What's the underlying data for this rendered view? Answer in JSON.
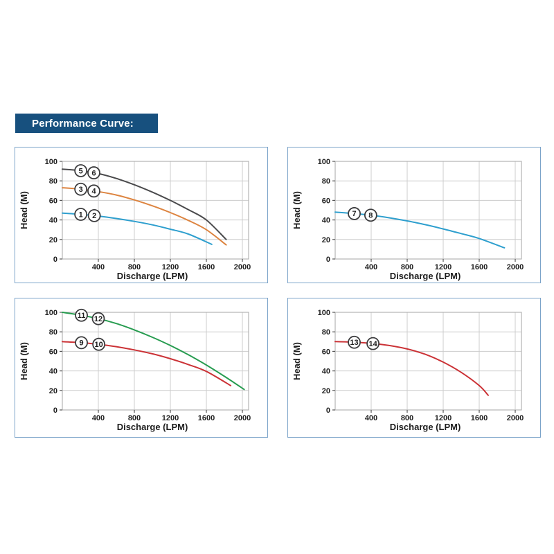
{
  "header": {
    "title": "Performance Curve:",
    "background": "#17507e",
    "text_color": "#ffffff"
  },
  "style": {
    "panel_border": "#7ba3c9",
    "grid_color": "#cccccc",
    "box_color": "#b3b3b3",
    "tick_color": "#555555",
    "label_color": "#1d1d1d",
    "marker_fill": "#ffffff",
    "marker_stroke": "#3c3c3e"
  },
  "chart_data": [
    {
      "id": "chart-top-left",
      "type": "line",
      "xlabel": "Discharge (LPM)",
      "ylabel": "Head (M)",
      "xlim": [
        0,
        2000
      ],
      "ylim": [
        0,
        100
      ],
      "xticks": [
        400,
        800,
        1200,
        1600,
        2000
      ],
      "yticks": [
        0,
        20,
        40,
        60,
        80,
        100
      ],
      "grid": true,
      "series": [
        {
          "name": "curve-5-6",
          "color": "#4a4a4c",
          "points": [
            [
              0,
              92
            ],
            [
              200,
              90.5
            ],
            [
              400,
              87.5
            ],
            [
              600,
              82.5
            ],
            [
              800,
              76
            ],
            [
              1000,
              68.5
            ],
            [
              1200,
              60
            ],
            [
              1400,
              50.5
            ],
            [
              1600,
              40
            ],
            [
              1820,
              20
            ]
          ],
          "markers": [
            {
              "label": "5",
              "x": 205
            },
            {
              "label": "6",
              "x": 350
            }
          ]
        },
        {
          "name": "curve-3-4",
          "color": "#dd8440",
          "points": [
            [
              0,
              73
            ],
            [
              200,
              71.5
            ],
            [
              400,
              69
            ],
            [
              600,
              65.5
            ],
            [
              800,
              60.5
            ],
            [
              1000,
              54.5
            ],
            [
              1200,
              47.5
            ],
            [
              1400,
              39.5
            ],
            [
              1600,
              30
            ],
            [
              1820,
              14.5
            ]
          ],
          "markers": [
            {
              "label": "3",
              "x": 205
            },
            {
              "label": "4",
              "x": 350
            }
          ]
        },
        {
          "name": "curve-1-2",
          "color": "#2e9fce",
          "points": [
            [
              0,
              47
            ],
            [
              200,
              45.8
            ],
            [
              400,
              44
            ],
            [
              600,
              41.5
            ],
            [
              800,
              38.5
            ],
            [
              1000,
              35
            ],
            [
              1200,
              30.5
            ],
            [
              1400,
              25.5
            ],
            [
              1660,
              15
            ]
          ],
          "markers": [
            {
              "label": "1",
              "x": 205
            },
            {
              "label": "2",
              "x": 355
            }
          ]
        }
      ]
    },
    {
      "id": "chart-top-right",
      "type": "line",
      "xlabel": "Discharge (LPM)",
      "ylabel": "Head (M)",
      "xlim": [
        0,
        2000
      ],
      "ylim": [
        0,
        100
      ],
      "xticks": [
        400,
        800,
        1200,
        1600,
        2000
      ],
      "yticks": [
        0,
        20,
        40,
        60,
        80,
        100
      ],
      "grid": true,
      "series": [
        {
          "name": "curve-7-8",
          "color": "#2e9fce",
          "points": [
            [
              0,
              48
            ],
            [
              200,
              46.6
            ],
            [
              400,
              44.8
            ],
            [
              600,
              42.2
            ],
            [
              800,
              39
            ],
            [
              1000,
              35.2
            ],
            [
              1200,
              30.8
            ],
            [
              1400,
              26
            ],
            [
              1600,
              21
            ],
            [
              1880,
              11.5
            ]
          ],
          "markers": [
            {
              "label": "7",
              "x": 212
            },
            {
              "label": "8",
              "x": 395
            }
          ]
        }
      ]
    },
    {
      "id": "chart-bottom-left",
      "type": "line",
      "xlabel": "Discharge (LPM)",
      "ylabel": "Head (M)",
      "xlim": [
        0,
        2000
      ],
      "ylim": [
        0,
        100
      ],
      "xticks": [
        400,
        800,
        1200,
        1600,
        2000
      ],
      "yticks": [
        0,
        20,
        40,
        60,
        80,
        100
      ],
      "grid": true,
      "series": [
        {
          "name": "curve-11-12",
          "color": "#279c50",
          "points": [
            [
              0,
              100
            ],
            [
              200,
              97.2
            ],
            [
              400,
              93.5
            ],
            [
              600,
              88.5
            ],
            [
              800,
              82
            ],
            [
              1000,
              74.5
            ],
            [
              1200,
              66
            ],
            [
              1400,
              56.5
            ],
            [
              1600,
              46
            ],
            [
              1800,
              34.5
            ],
            [
              2020,
              21
            ]
          ],
          "markers": [
            {
              "label": "11",
              "x": 212
            },
            {
              "label": "12",
              "x": 400
            }
          ]
        },
        {
          "name": "curve-9-10",
          "color": "#cb3236",
          "points": [
            [
              0,
              70
            ],
            [
              200,
              69
            ],
            [
              400,
              67.3
            ],
            [
              600,
              64.8
            ],
            [
              800,
              61.5
            ],
            [
              1000,
              57.5
            ],
            [
              1200,
              52.5
            ],
            [
              1400,
              46.5
            ],
            [
              1600,
              39.5
            ],
            [
              1870,
              25
            ]
          ],
          "markers": [
            {
              "label": "9",
              "x": 212
            },
            {
              "label": "10",
              "x": 405
            }
          ]
        }
      ]
    },
    {
      "id": "chart-bottom-right",
      "type": "line",
      "xlabel": "Discharge (LPM)",
      "ylabel": "Head (M)",
      "xlim": [
        0,
        2000
      ],
      "ylim": [
        0,
        100
      ],
      "xticks": [
        400,
        800,
        1200,
        1600,
        2000
      ],
      "yticks": [
        0,
        20,
        40,
        60,
        80,
        100
      ],
      "grid": true,
      "series": [
        {
          "name": "curve-13-14",
          "color": "#cb3236",
          "points": [
            [
              0,
              70
            ],
            [
              200,
              69.4
            ],
            [
              400,
              68.2
            ],
            [
              600,
              66
            ],
            [
              800,
              62.5
            ],
            [
              1000,
              57
            ],
            [
              1200,
              49
            ],
            [
              1400,
              38.5
            ],
            [
              1600,
              25
            ],
            [
              1700,
              15
            ]
          ],
          "markers": [
            {
              "label": "13",
              "x": 212
            },
            {
              "label": "14",
              "x": 420
            }
          ]
        }
      ]
    }
  ]
}
